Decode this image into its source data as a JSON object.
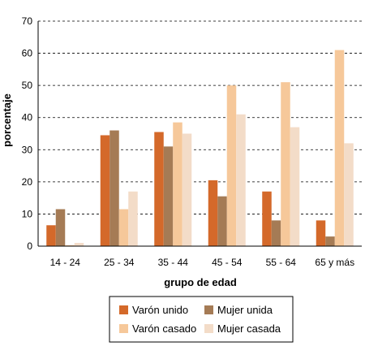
{
  "chart_data": {
    "type": "bar",
    "categories": [
      "14 - 24",
      "25 - 34",
      "35 - 44",
      "45 - 54",
      "55 - 64",
      "65 y más"
    ],
    "series": [
      {
        "name": "Varón unido",
        "color": "#d4692a",
        "values": [
          6.5,
          34.5,
          35.5,
          20.5,
          17,
          8
        ]
      },
      {
        "name": "Mujer unida",
        "color": "#a57b55",
        "values": [
          11.5,
          36,
          31,
          15.5,
          8,
          3
        ]
      },
      {
        "name": "Varón casado",
        "color": "#f6c89a",
        "values": [
          0.3,
          11.5,
          38.5,
          50,
          51,
          61
        ]
      },
      {
        "name": "Mujer casada",
        "color": "#f3dcc8",
        "values": [
          1,
          17,
          35,
          41,
          37,
          32
        ]
      }
    ],
    "xlabel": "grupo de edad",
    "ylabel": "porcentaje",
    "ylim": [
      0,
      70
    ],
    "yticks": [
      0,
      10,
      20,
      30,
      40,
      50,
      60,
      70
    ],
    "grid": "horizontal dashed",
    "legend_position": "bottom"
  }
}
